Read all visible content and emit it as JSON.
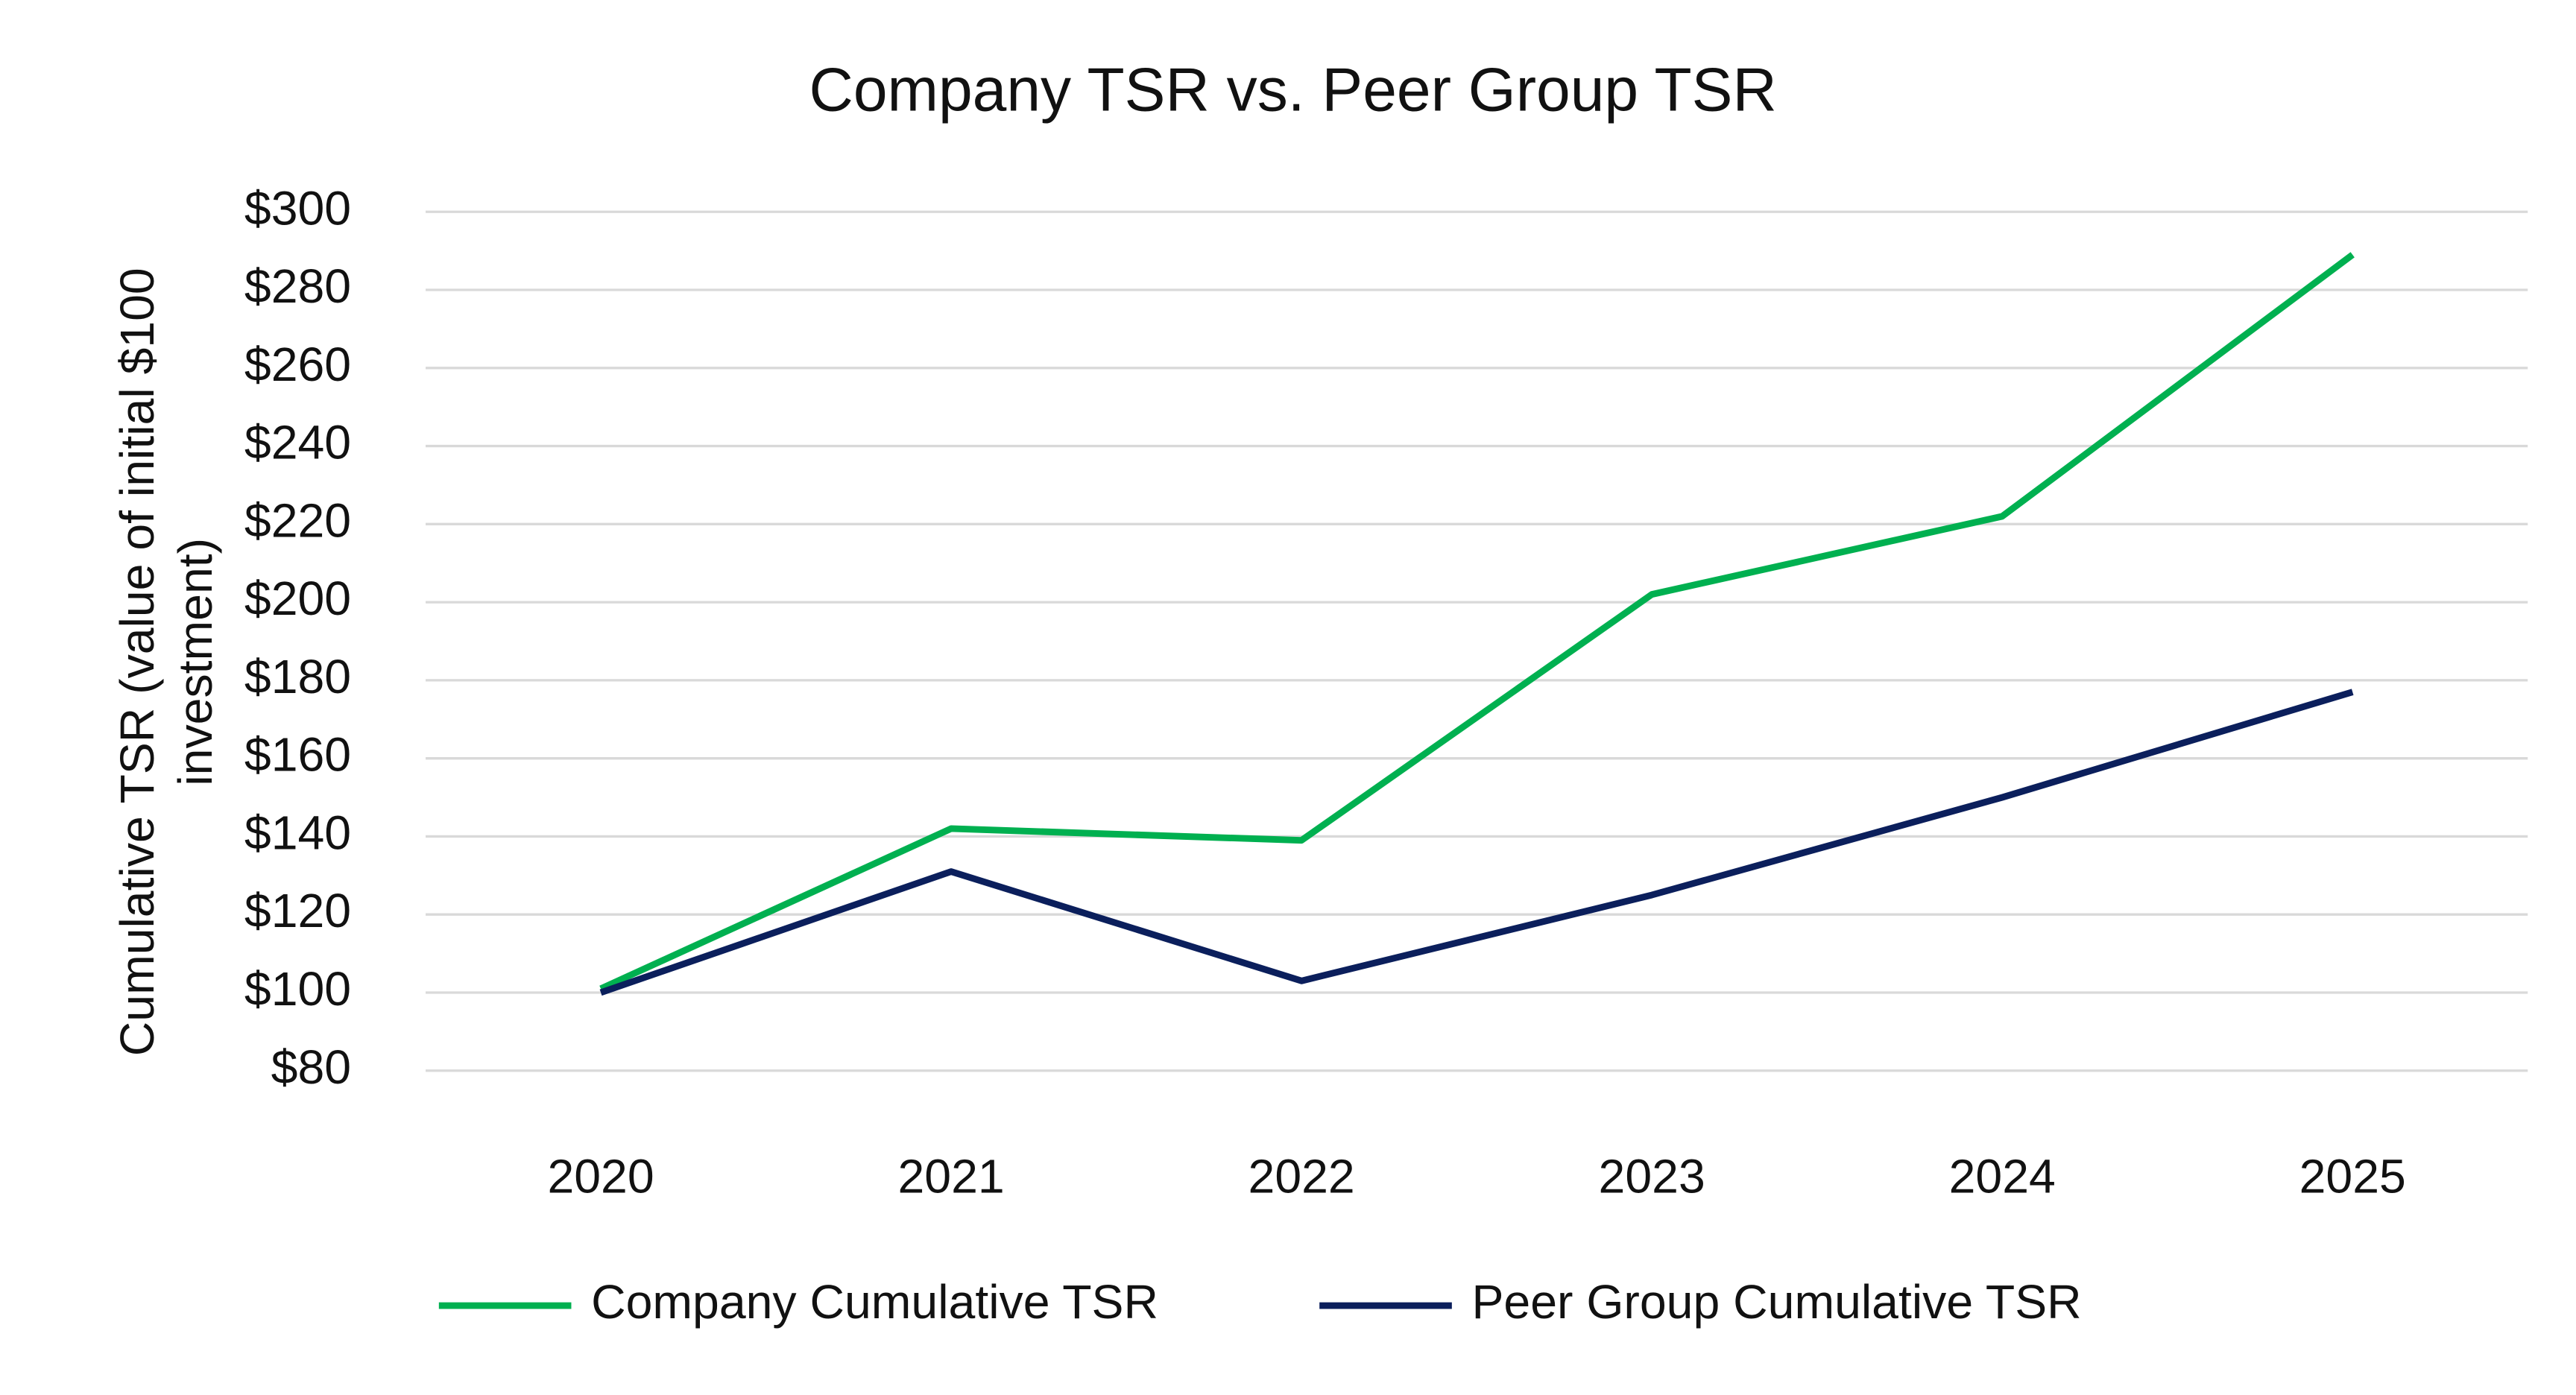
{
  "chart_data": {
    "type": "line",
    "title": "Company TSR vs. Peer Group TSR",
    "y_label": [
      "Cumulative TSR (value of initial $100",
      "investment)"
    ],
    "categories": [
      "2020",
      "2021",
      "2022",
      "2023",
      "2024",
      "2025"
    ],
    "series": [
      {
        "name": "Company Cumulative TSR",
        "color": "#00b050",
        "values": [
          101,
          142,
          139,
          202,
          222,
          289
        ]
      },
      {
        "name": "Peer Group Cumulative TSR",
        "color": "#0b1f5c",
        "values": [
          100,
          131,
          103,
          125,
          150,
          177
        ]
      }
    ],
    "ylim": [
      80,
      300
    ],
    "yticks": [
      {
        "value": 80,
        "label": "$80"
      },
      {
        "value": 100,
        "label": "$100"
      },
      {
        "value": 120,
        "label": "$120"
      },
      {
        "value": 140,
        "label": "$140"
      },
      {
        "value": 160,
        "label": "$160"
      },
      {
        "value": 180,
        "label": "$180"
      },
      {
        "value": 200,
        "label": "$200"
      },
      {
        "value": 220,
        "label": "$220"
      },
      {
        "value": 240,
        "label": "$240"
      },
      {
        "value": 260,
        "label": "$260"
      },
      {
        "value": 280,
        "label": "$280"
      },
      {
        "value": 300,
        "label": "$300"
      }
    ],
    "grid": true,
    "legend": "bottom"
  }
}
